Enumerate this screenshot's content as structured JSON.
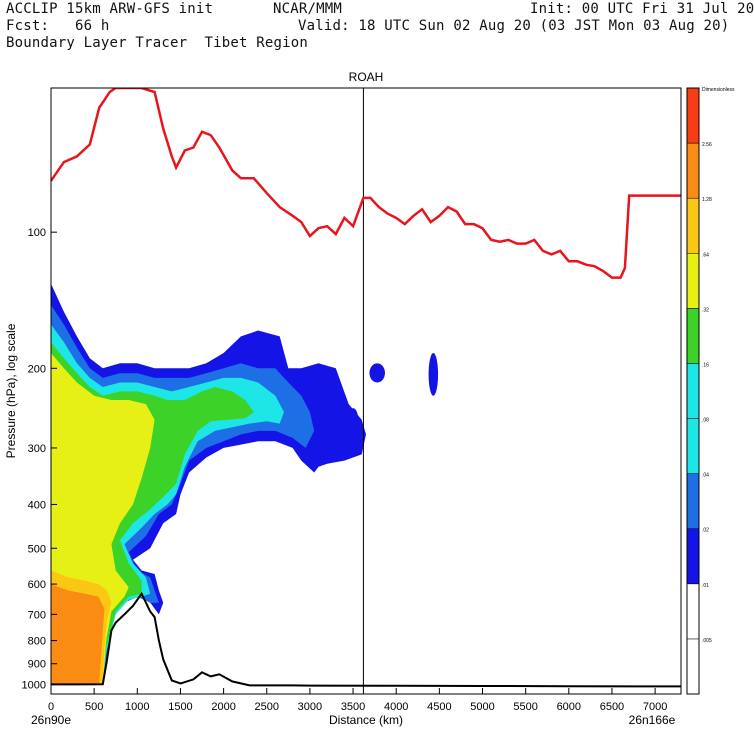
{
  "header": {
    "line1_left": "ACCLIP 15km ARW-GFS init",
    "line1_mid": "NCAR/MMM",
    "line1_right": "Init: 00 UTC Fri 31 Jul 20",
    "line2_left": "Fcst:   66 h",
    "line2_right": "Valid: 18 UTC Sun 02 Aug 20 (03 JST Mon 03 Aug 20)",
    "line3": "Boundary Layer Tracer  Tibet Region"
  },
  "colors": {
    "tropopause": "#e8141e",
    "terrain": "#000000",
    "levels": [
      "#ffffff",
      "#1414e6",
      "#1e6ee6",
      "#1ee6e6",
      "#3cd228",
      "#e6f014",
      "#fac814",
      "#fa8c14",
      "#fa3c14"
    ]
  },
  "chart_data": {
    "type": "cross-section contour",
    "title": "ROAH",
    "xlabel": "Distance (km)",
    "ylabel": "Pressure (hPa), log scale",
    "x_start_label": "26n90e",
    "x_end_label": "26n166e",
    "xlim": [
      0,
      7300
    ],
    "ylim_hpa": [
      1050,
      48
    ],
    "x_ticks": [
      0,
      500,
      1000,
      1500,
      2000,
      2500,
      3000,
      3500,
      4000,
      4500,
      5000,
      5500,
      6000,
      6500,
      7000
    ],
    "x_tick_labels": [
      "0",
      "500",
      "1000",
      "1500",
      "2000",
      "2500",
      "3000",
      "3500",
      "4000",
      "4500",
      "5000",
      "5500",
      "6000",
      "6500",
      "7000"
    ],
    "y_ticks": [
      100,
      200,
      300,
      400,
      500,
      600,
      700,
      800,
      900,
      1000
    ],
    "y_tick_labels": [
      "100",
      "200",
      "300",
      "400",
      "500",
      "600",
      "700",
      "800",
      "900",
      "1000"
    ],
    "vertical_marker_km": 3620,
    "colorbar": {
      "title": "Dimensionless",
      "levels": [
        0.005,
        0.01,
        0.02,
        0.04,
        0.08,
        0.16,
        0.32,
        0.64,
        1.28,
        2.56
      ],
      "labels": [
        ".005",
        ".01",
        ".02",
        ".04",
        ".08",
        ".16",
        ".32",
        ".64",
        "1.28",
        "2.56",
        "Dimensionless"
      ]
    },
    "tropopause_hpa": [
      [
        0,
        77
      ],
      [
        150,
        70
      ],
      [
        300,
        68
      ],
      [
        450,
        64
      ],
      [
        560,
        53
      ],
      [
        620,
        51
      ],
      [
        680,
        49
      ],
      [
        750,
        48
      ],
      [
        900,
        48
      ],
      [
        1050,
        48
      ],
      [
        1200,
        49
      ],
      [
        1300,
        59
      ],
      [
        1400,
        68
      ],
      [
        1450,
        72
      ],
      [
        1550,
        66
      ],
      [
        1650,
        65
      ],
      [
        1750,
        60
      ],
      [
        1850,
        61
      ],
      [
        1950,
        65
      ],
      [
        2100,
        73
      ],
      [
        2200,
        76
      ],
      [
        2350,
        76
      ],
      [
        2500,
        82
      ],
      [
        2650,
        88
      ],
      [
        2800,
        92
      ],
      [
        2900,
        95
      ],
      [
        3000,
        102
      ],
      [
        3100,
        98
      ],
      [
        3200,
        97
      ],
      [
        3300,
        101
      ],
      [
        3400,
        93
      ],
      [
        3500,
        97
      ],
      [
        3620,
        84
      ],
      [
        3700,
        84
      ],
      [
        3800,
        88
      ],
      [
        3900,
        91
      ],
      [
        4000,
        93
      ],
      [
        4100,
        96
      ],
      [
        4200,
        92
      ],
      [
        4300,
        89
      ],
      [
        4400,
        95
      ],
      [
        4500,
        92
      ],
      [
        4600,
        88
      ],
      [
        4700,
        90
      ],
      [
        4800,
        96
      ],
      [
        4900,
        96
      ],
      [
        5000,
        98
      ],
      [
        5100,
        104
      ],
      [
        5200,
        105
      ],
      [
        5300,
        104
      ],
      [
        5400,
        106
      ],
      [
        5500,
        106
      ],
      [
        5600,
        104
      ],
      [
        5700,
        110
      ],
      [
        5800,
        112
      ],
      [
        5900,
        110
      ],
      [
        6000,
        116
      ],
      [
        6100,
        116
      ],
      [
        6200,
        118
      ],
      [
        6300,
        119
      ],
      [
        6400,
        122
      ],
      [
        6500,
        126
      ],
      [
        6600,
        126
      ],
      [
        6650,
        120
      ],
      [
        6700,
        83
      ],
      [
        6800,
        83
      ],
      [
        6900,
        83
      ],
      [
        7000,
        83
      ],
      [
        7100,
        83
      ],
      [
        7300,
        83
      ]
    ],
    "terrain_hpa": [
      [
        0,
        1000
      ],
      [
        300,
        1000
      ],
      [
        600,
        999
      ],
      [
        650,
        880
      ],
      [
        700,
        760
      ],
      [
        750,
        730
      ],
      [
        850,
        700
      ],
      [
        950,
        670
      ],
      [
        1050,
        630
      ],
      [
        1150,
        690
      ],
      [
        1200,
        710
      ],
      [
        1250,
        800
      ],
      [
        1300,
        880
      ],
      [
        1400,
        980
      ],
      [
        1500,
        995
      ],
      [
        1650,
        975
      ],
      [
        1750,
        940
      ],
      [
        1850,
        960
      ],
      [
        1950,
        950
      ],
      [
        2100,
        985
      ],
      [
        2300,
        1005
      ],
      [
        2500,
        1005
      ],
      [
        2800,
        1005
      ],
      [
        3000,
        1006
      ],
      [
        4000,
        1007
      ],
      [
        5000,
        1008
      ],
      [
        6000,
        1009
      ],
      [
        7000,
        1010
      ],
      [
        7300,
        1010
      ]
    ],
    "tracer_regions": [
      {
        "level": 1,
        "points": [
          [
            0,
            130
          ],
          [
            150,
            150
          ],
          [
            300,
            170
          ],
          [
            450,
            190
          ],
          [
            600,
            200
          ],
          [
            800,
            195
          ],
          [
            1000,
            195
          ],
          [
            1200,
            200
          ],
          [
            1400,
            200
          ],
          [
            1600,
            200
          ],
          [
            1800,
            195
          ],
          [
            2000,
            185
          ],
          [
            2200,
            170
          ],
          [
            2400,
            165
          ],
          [
            2650,
            170
          ],
          [
            2750,
            200
          ],
          [
            2900,
            200
          ],
          [
            3100,
            195
          ],
          [
            3300,
            200
          ],
          [
            3450,
            240
          ],
          [
            3600,
            260
          ],
          [
            3650,
            280
          ],
          [
            3600,
            310
          ],
          [
            3400,
            320
          ],
          [
            3200,
            325
          ],
          [
            3100,
            330
          ],
          [
            3050,
            340
          ],
          [
            2900,
            320
          ],
          [
            2800,
            300
          ],
          [
            2600,
            290
          ],
          [
            2400,
            290
          ],
          [
            2200,
            295
          ],
          [
            2000,
            300
          ],
          [
            1800,
            315
          ],
          [
            1600,
            340
          ],
          [
            1500,
            380
          ],
          [
            1450,
            420
          ],
          [
            1300,
            440
          ],
          [
            1150,
            500
          ],
          [
            950,
            530
          ],
          [
            1050,
            560
          ],
          [
            1200,
            570
          ],
          [
            1250,
            620
          ],
          [
            1300,
            660
          ],
          [
            1250,
            700
          ],
          [
            1100,
            640
          ],
          [
            950,
            640
          ],
          [
            850,
            660
          ],
          [
            700,
            720
          ],
          [
            650,
            880
          ],
          [
            600,
            1000
          ],
          [
            0,
            1000
          ]
        ]
      },
      {
        "level": 2,
        "points": [
          [
            0,
            145
          ],
          [
            150,
            160
          ],
          [
            300,
            180
          ],
          [
            450,
            200
          ],
          [
            600,
            210
          ],
          [
            800,
            205
          ],
          [
            1000,
            205
          ],
          [
            1200,
            210
          ],
          [
            1400,
            210
          ],
          [
            1600,
            210
          ],
          [
            1800,
            205
          ],
          [
            2000,
            200
          ],
          [
            2200,
            195
          ],
          [
            2400,
            200
          ],
          [
            2600,
            200
          ],
          [
            2700,
            210
          ],
          [
            2900,
            230
          ],
          [
            3000,
            250
          ],
          [
            3050,
            275
          ],
          [
            2950,
            300
          ],
          [
            2800,
            285
          ],
          [
            2600,
            275
          ],
          [
            2400,
            275
          ],
          [
            2200,
            280
          ],
          [
            2000,
            290
          ],
          [
            1800,
            300
          ],
          [
            1600,
            320
          ],
          [
            1500,
            360
          ],
          [
            1400,
            400
          ],
          [
            1250,
            420
          ],
          [
            1100,
            470
          ],
          [
            900,
            510
          ],
          [
            1000,
            560
          ],
          [
            1150,
            580
          ],
          [
            1200,
            620
          ],
          [
            1250,
            660
          ],
          [
            1150,
            660
          ],
          [
            1000,
            640
          ],
          [
            850,
            660
          ],
          [
            700,
            720
          ],
          [
            640,
            880
          ],
          [
            600,
            1000
          ],
          [
            0,
            1000
          ]
        ]
      },
      {
        "level": 3,
        "points": [
          [
            0,
            160
          ],
          [
            150,
            175
          ],
          [
            300,
            195
          ],
          [
            450,
            210
          ],
          [
            600,
            220
          ],
          [
            800,
            215
          ],
          [
            1000,
            215
          ],
          [
            1200,
            220
          ],
          [
            1400,
            225
          ],
          [
            1600,
            220
          ],
          [
            1800,
            215
          ],
          [
            2000,
            210
          ],
          [
            2200,
            210
          ],
          [
            2400,
            215
          ],
          [
            2600,
            230
          ],
          [
            2700,
            250
          ],
          [
            2650,
            265
          ],
          [
            2500,
            262
          ],
          [
            2300,
            265
          ],
          [
            2100,
            270
          ],
          [
            1900,
            275
          ],
          [
            1700,
            290
          ],
          [
            1550,
            330
          ],
          [
            1450,
            380
          ],
          [
            1350,
            400
          ],
          [
            1200,
            420
          ],
          [
            1050,
            450
          ],
          [
            850,
            490
          ],
          [
            950,
            540
          ],
          [
            1100,
            580
          ],
          [
            1150,
            630
          ],
          [
            1050,
            640
          ],
          [
            900,
            650
          ],
          [
            750,
            700
          ],
          [
            640,
            850
          ],
          [
            600,
            1000
          ],
          [
            0,
            1000
          ]
        ]
      },
      {
        "level": 4,
        "points": [
          [
            0,
            175
          ],
          [
            150,
            190
          ],
          [
            300,
            205
          ],
          [
            450,
            220
          ],
          [
            600,
            230
          ],
          [
            800,
            225
          ],
          [
            1000,
            225
          ],
          [
            1200,
            230
          ],
          [
            1350,
            235
          ],
          [
            1550,
            235
          ],
          [
            1750,
            225
          ],
          [
            1900,
            220
          ],
          [
            2100,
            225
          ],
          [
            2250,
            235
          ],
          [
            2350,
            250
          ],
          [
            2250,
            258
          ],
          [
            2050,
            260
          ],
          [
            1850,
            262
          ],
          [
            1700,
            275
          ],
          [
            1550,
            310
          ],
          [
            1450,
            360
          ],
          [
            1300,
            385
          ],
          [
            1150,
            410
          ],
          [
            950,
            440
          ],
          [
            800,
            480
          ],
          [
            900,
            540
          ],
          [
            1050,
            590
          ],
          [
            1050,
            630
          ],
          [
            900,
            640
          ],
          [
            750,
            690
          ],
          [
            640,
            830
          ],
          [
            600,
            1000
          ],
          [
            0,
            1000
          ]
        ]
      },
      {
        "level": 5,
        "points": [
          [
            0,
            185
          ],
          [
            150,
            200
          ],
          [
            300,
            215
          ],
          [
            500,
            230
          ],
          [
            700,
            235
          ],
          [
            900,
            235
          ],
          [
            1100,
            240
          ],
          [
            1200,
            260
          ],
          [
            1150,
            300
          ],
          [
            1050,
            350
          ],
          [
            950,
            400
          ],
          [
            800,
            440
          ],
          [
            700,
            490
          ],
          [
            750,
            560
          ],
          [
            900,
            610
          ],
          [
            850,
            640
          ],
          [
            700,
            690
          ],
          [
            640,
            800
          ],
          [
            600,
            1000
          ],
          [
            0,
            1000
          ]
        ]
      },
      {
        "level": 6,
        "points": [
          [
            0,
            560
          ],
          [
            200,
            580
          ],
          [
            400,
            590
          ],
          [
            550,
            600
          ],
          [
            650,
            620
          ],
          [
            700,
            660
          ],
          [
            650,
            720
          ],
          [
            620,
            820
          ],
          [
            600,
            1000
          ],
          [
            0,
            1000
          ]
        ]
      },
      {
        "level": 7,
        "points": [
          [
            0,
            600
          ],
          [
            200,
            620
          ],
          [
            400,
            630
          ],
          [
            550,
            640
          ],
          [
            620,
            680
          ],
          [
            600,
            760
          ],
          [
            580,
            860
          ],
          [
            560,
            1000
          ],
          [
            0,
            1000
          ]
        ]
      }
    ],
    "tracer_blobs": [
      {
        "level": 1,
        "cx": 3780,
        "cy": 205,
        "rx": 90,
        "ry_hpa": [
          195,
          215
        ]
      },
      {
        "level": 1,
        "cx": 4430,
        "cy": 205,
        "rx": 55,
        "ry_hpa": [
          185,
          230
        ]
      },
      {
        "level": 1,
        "cx": 3500,
        "cy": 260,
        "rx": 60,
        "ry_hpa": [
          245,
          275
        ]
      }
    ]
  }
}
